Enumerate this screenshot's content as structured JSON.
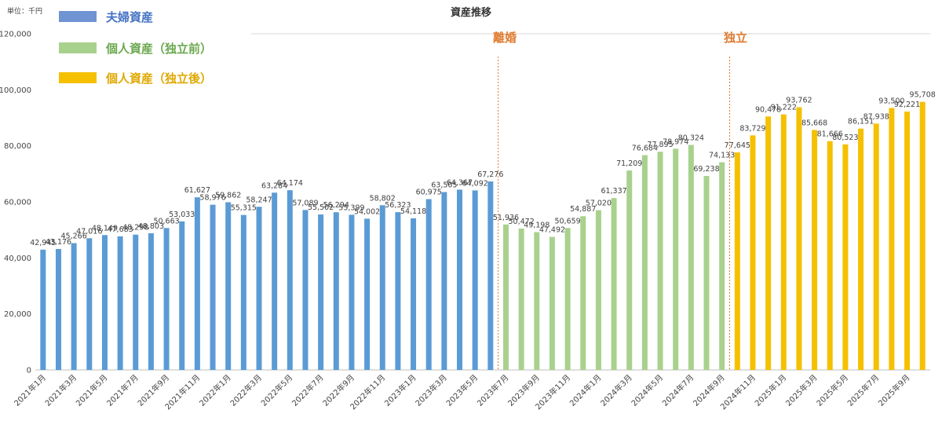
{
  "chart_data": {
    "type": "bar",
    "title": "資産推移",
    "unit_label": "単位：千円",
    "ylim": [
      0,
      120000
    ],
    "yticks": [
      "0",
      "20,000",
      "40,000",
      "60,000",
      "80,000",
      "100,000",
      "120,000"
    ],
    "grid": false,
    "legend_position": "top-left",
    "categories": [
      "2021年1月",
      "2021年2月",
      "2021年3月",
      "2021年4月",
      "2021年5月",
      "2021年6月",
      "2021年7月",
      "2021年8月",
      "2021年9月",
      "2021年10月",
      "2021年11月",
      "2021年12月",
      "2022年1月",
      "2022年2月",
      "2022年3月",
      "2022年4月",
      "2022年5月",
      "2022年6月",
      "2022年7月",
      "2022年8月",
      "2022年9月",
      "2022年10月",
      "2022年11月",
      "2022年12月",
      "2023年1月",
      "2023年2月",
      "2023年3月",
      "2023年4月",
      "2023年5月",
      "2023年6月",
      "2023年7月",
      "2023年8月",
      "2023年9月",
      "2023年10月",
      "2023年11月",
      "2023年12月",
      "2024年1月",
      "2024年2月",
      "2024年3月",
      "2024年4月",
      "2024年5月",
      "2024年6月",
      "2024年7月",
      "2024年8月",
      "2024年9月",
      "2024年10月",
      "2024年11月",
      "2024年12月",
      "2025年1月",
      "2025年2月",
      "2025年3月",
      "2025年4月",
      "2025年5月",
      "2025年6月",
      "2025年7月",
      "2025年8月",
      "2025年9月",
      "2025年10月"
    ],
    "xtick_labels": [
      "2021年1月",
      "",
      "2021年3月",
      "",
      "2021年5月",
      "",
      "2021年7月",
      "",
      "2021年9月",
      "",
      "2021年11月",
      "",
      "2022年1月",
      "",
      "2022年3月",
      "",
      "2022年5月",
      "",
      "2022年7月",
      "",
      "2022年9月",
      "",
      "2022年11月",
      "",
      "2023年1月",
      "",
      "2023年3月",
      "",
      "2023年5月",
      "",
      "2023年7月",
      "",
      "2023年9月",
      "",
      "2023年11月",
      "",
      "2024年1月",
      "",
      "2024年3月",
      "",
      "2024年5月",
      "",
      "2024年7月",
      "",
      "2024年9月",
      "",
      "2024年11月",
      "",
      "2025年1月",
      "",
      "2025年3月",
      "",
      "2025年5月",
      "",
      "2025年7月",
      "",
      "2025年9月",
      ""
    ],
    "series": [
      {
        "name": "夫婦資産",
        "color": "#5b9bd5",
        "values": [
          42945,
          43176,
          45266,
          47016,
          48149,
          47683,
          48298,
          48803,
          50663,
          53033,
          61627,
          58976,
          59862,
          55315,
          58247,
          63284,
          64174,
          57089,
          55502,
          56294,
          55399,
          54002,
          58802,
          56323,
          54118,
          60975,
          63505,
          64367,
          64092,
          67276,
          null,
          null,
          null,
          null,
          null,
          null,
          null,
          null,
          null,
          null,
          null,
          null,
          null,
          null,
          null,
          null,
          null,
          null,
          null,
          null,
          null,
          null,
          null,
          null,
          null,
          null,
          null,
          null
        ]
      },
      {
        "name": "個人資産（独立前）",
        "color": "#a9d18e",
        "values": [
          null,
          null,
          null,
          null,
          null,
          null,
          null,
          null,
          null,
          null,
          null,
          null,
          null,
          null,
          null,
          null,
          null,
          null,
          null,
          null,
          null,
          null,
          null,
          null,
          null,
          null,
          null,
          null,
          null,
          null,
          51936,
          50472,
          49198,
          47492,
          50659,
          54887,
          57020,
          61337,
          71209,
          76684,
          77895,
          78974,
          80324,
          69238,
          74133,
          null,
          null,
          null,
          null,
          null,
          null,
          null,
          null,
          null,
          null,
          null,
          null,
          null
        ]
      },
      {
        "name": "個人資産（独立後）",
        "color": "#f5c000",
        "values": [
          null,
          null,
          null,
          null,
          null,
          null,
          null,
          null,
          null,
          null,
          null,
          null,
          null,
          null,
          null,
          null,
          null,
          null,
          null,
          null,
          null,
          null,
          null,
          null,
          null,
          null,
          null,
          null,
          null,
          null,
          null,
          null,
          null,
          null,
          null,
          null,
          null,
          null,
          null,
          null,
          null,
          null,
          null,
          null,
          null,
          77645,
          83729,
          90478,
          91222,
          93762,
          85668,
          81666,
          80523,
          86151,
          87938,
          93500,
          92221,
          95708
        ]
      }
    ],
    "annotations": [
      {
        "text": "離婚",
        "color": "#e07a2e"
      },
      {
        "text": "独立",
        "color": "#e07a2e"
      }
    ]
  }
}
